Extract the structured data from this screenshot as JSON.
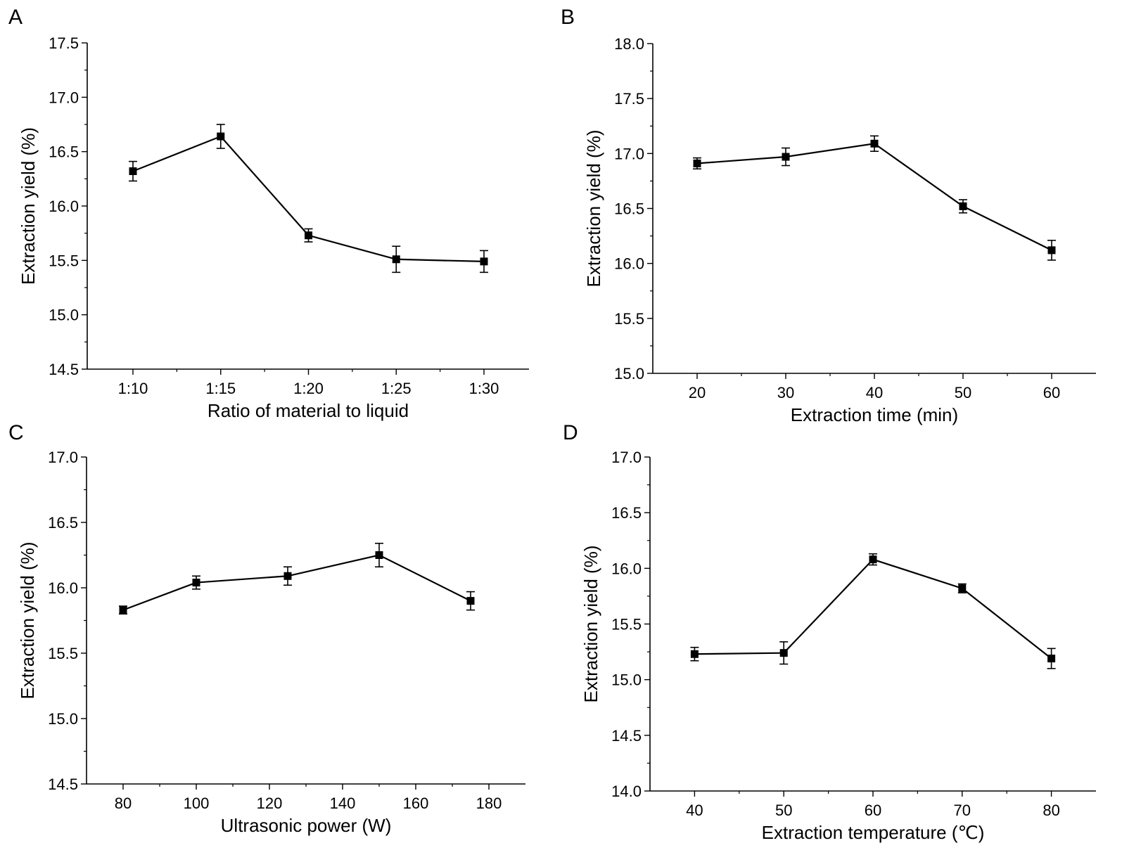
{
  "figure": {
    "chart_data": [
      {
        "panel": "A",
        "type": "line",
        "categorical": true,
        "categories": [
          "1:10",
          "1:15",
          "1:20",
          "1:25",
          "1:30"
        ],
        "values": [
          16.32,
          16.64,
          15.73,
          15.51,
          15.49
        ],
        "errors": [
          0.09,
          0.11,
          0.06,
          0.12,
          0.1
        ],
        "xlabel": "Ratio of material to liquid",
        "ylabel": "Extraction yield (%)",
        "ylim": [
          14.5,
          17.5
        ],
        "yticks": [
          "14.5",
          "15.0",
          "15.5",
          "16.0",
          "16.5",
          "17.0",
          "17.5"
        ]
      },
      {
        "panel": "B",
        "type": "line",
        "categorical": false,
        "x": [
          20,
          30,
          40,
          50,
          60
        ],
        "values": [
          16.91,
          16.97,
          17.09,
          16.52,
          16.12
        ],
        "errors": [
          0.05,
          0.08,
          0.07,
          0.06,
          0.09
        ],
        "xlim": [
          15,
          65
        ],
        "xticks": [
          "20",
          "30",
          "40",
          "50",
          "60"
        ],
        "xlabel": "Extraction time (min)",
        "ylabel": "Extraction yield (%)",
        "ylim": [
          15.0,
          18.0
        ],
        "yticks": [
          "15.0",
          "15.5",
          "16.0",
          "16.5",
          "17.0",
          "17.5",
          "18.0"
        ]
      },
      {
        "panel": "C",
        "type": "line",
        "categorical": false,
        "x": [
          80,
          100,
          125,
          150,
          175
        ],
        "values": [
          15.83,
          16.04,
          16.09,
          16.25,
          15.9
        ],
        "errors": [
          0.03,
          0.05,
          0.07,
          0.09,
          0.07
        ],
        "xlim": [
          70,
          190
        ],
        "xticks": [
          "80",
          "100",
          "120",
          "140",
          "160",
          "180"
        ],
        "xlabel": "Ultrasonic power (W)",
        "ylabel": "Extraction yield (%)",
        "ylim": [
          14.5,
          17.0
        ],
        "yticks": [
          "14.5",
          "15.0",
          "15.5",
          "16.0",
          "16.5",
          "17.0"
        ]
      },
      {
        "panel": "D",
        "type": "line",
        "categorical": false,
        "x": [
          40,
          50,
          60,
          70,
          80
        ],
        "values": [
          15.23,
          15.24,
          16.08,
          15.82,
          15.19
        ],
        "errors": [
          0.06,
          0.1,
          0.05,
          0.04,
          0.09
        ],
        "xlim": [
          35,
          85
        ],
        "xticks": [
          "40",
          "50",
          "60",
          "70",
          "80"
        ],
        "xlabel": "Extraction temperature (℃)",
        "ylabel": "Extraction yield (%)",
        "ylim": [
          14.0,
          17.0
        ],
        "yticks": [
          "14.0",
          "14.5",
          "15.0",
          "15.5",
          "16.0",
          "16.5",
          "17.0"
        ]
      }
    ]
  }
}
